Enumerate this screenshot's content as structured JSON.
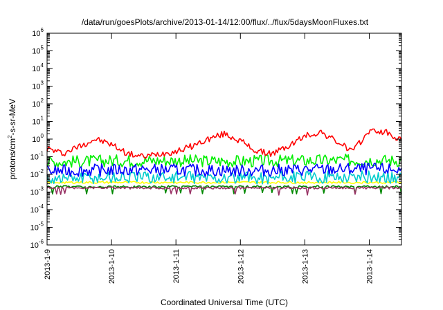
{
  "chart_data": {
    "type": "line",
    "title": "/data/run/goesPlots/archive/2013-01-14/12:00/flux/../flux/5daysMoonFluxes.txt",
    "xlabel": "Coordinated Universal Time (UTC)",
    "ylabel": "protons/cm²-s-sr-MeV",
    "ylabel_parts": {
      "pre": "protons/cm",
      "sup": "2",
      "post": "-s-sr-MeV"
    },
    "y_scale": "log",
    "ylim": [
      1e-06,
      1000000.0
    ],
    "y_ticks": [
      {
        "exp": -6,
        "base": "10",
        "sup": "-6"
      },
      {
        "exp": -5,
        "base": "10",
        "sup": "-5"
      },
      {
        "exp": -4,
        "base": "10",
        "sup": "-4"
      },
      {
        "exp": -3,
        "base": "10",
        "sup": "-3"
      },
      {
        "exp": -2,
        "base": "10",
        "sup": "-2"
      },
      {
        "exp": -1,
        "base": "10",
        "sup": "-1"
      },
      {
        "exp": 0,
        "base": "10",
        "sup": "0"
      },
      {
        "exp": 1,
        "base": "10",
        "sup": "1"
      },
      {
        "exp": 2,
        "base": "10",
        "sup": "2"
      },
      {
        "exp": 3,
        "base": "10",
        "sup": "3"
      },
      {
        "exp": 4,
        "base": "10",
        "sup": "4"
      },
      {
        "exp": 5,
        "base": "10",
        "sup": "5"
      },
      {
        "exp": 6,
        "base": "10",
        "sup": "6"
      }
    ],
    "xlim": [
      "2013-01-09T00:00",
      "2013-01-14T12:00"
    ],
    "x_ticks": [
      "2013-1-9",
      "2013-1-10",
      "2013-1-11",
      "2013-1-12",
      "2013-1-13",
      "2013-1-14"
    ],
    "grid": false,
    "series": [
      {
        "color": "#ff0000",
        "x": [
          "2013-01-09T00:00",
          "2013-01-09T06:00",
          "2013-01-09T12:00",
          "2013-01-09T18:00",
          "2013-01-10T00:00",
          "2013-01-10T06:00",
          "2013-01-10T12:00",
          "2013-01-10T18:00",
          "2013-01-11T00:00",
          "2013-01-11T06:00",
          "2013-01-11T12:00",
          "2013-01-11T18:00",
          "2013-01-12T00:00",
          "2013-01-12T06:00",
          "2013-01-12T12:00",
          "2013-01-12T18:00",
          "2013-01-13T00:00",
          "2013-01-13T06:00",
          "2013-01-13T12:00",
          "2013-01-13T18:00",
          "2013-01-14T00:00",
          "2013-01-14T06:00",
          "2013-01-14T12:00"
        ],
        "values": [
          0.3,
          0.15,
          0.4,
          1.0,
          0.5,
          0.15,
          0.1,
          0.15,
          0.2,
          0.4,
          1.0,
          2.0,
          0.8,
          0.2,
          0.15,
          0.4,
          1.5,
          2.5,
          0.7,
          0.2,
          3.0,
          2.5,
          0.8
        ]
      },
      {
        "color": "#00ee00",
        "x": [
          "2013-01-09T00:00",
          "2013-01-10T00:00",
          "2013-01-11T00:00",
          "2013-01-12T00:00",
          "2013-01-13T00:00",
          "2013-01-14T00:00",
          "2013-01-14T12:00"
        ],
        "values": [
          0.05,
          0.06,
          0.06,
          0.055,
          0.06,
          0.065,
          0.06
        ]
      },
      {
        "color": "#ffff00",
        "x": [
          "2013-01-09T00:00",
          "2013-01-10T00:00",
          "2013-01-11T00:00",
          "2013-01-12T00:00",
          "2013-01-13T00:00",
          "2013-01-14T00:00",
          "2013-01-14T12:00"
        ],
        "values": [
          0.0035,
          0.0035,
          0.0035,
          0.0035,
          0.0035,
          0.0035,
          0.0035
        ]
      },
      {
        "color": "#00cccc",
        "x": [
          "2013-01-09T00:00",
          "2013-01-10T00:00",
          "2013-01-11T00:00",
          "2013-01-12T00:00",
          "2013-01-13T00:00",
          "2013-01-14T00:00",
          "2013-01-14T12:00"
        ],
        "values": [
          0.006,
          0.007,
          0.007,
          0.006,
          0.007,
          0.007,
          0.007
        ]
      },
      {
        "color": "#0000ff",
        "x": [
          "2013-01-09T00:00",
          "2013-01-10T00:00",
          "2013-01-11T00:00",
          "2013-01-12T00:00",
          "2013-01-13T00:00",
          "2013-01-14T00:00",
          "2013-01-14T12:00"
        ],
        "values": [
          0.015,
          0.018,
          0.018,
          0.016,
          0.018,
          0.02,
          0.018
        ]
      },
      {
        "color": "#008800",
        "x": [
          "2013-01-09T00:00",
          "2013-01-10T00:00",
          "2013-01-11T00:00",
          "2013-01-12T00:00",
          "2013-01-13T00:00",
          "2013-01-14T00:00",
          "2013-01-14T12:00"
        ],
        "values": [
          0.002,
          0.002,
          0.002,
          0.002,
          0.002,
          0.002,
          0.002
        ]
      },
      {
        "color": "#993366",
        "x": [
          "2013-01-09T00:00",
          "2013-01-10T00:00",
          "2013-01-11T00:00",
          "2013-01-12T00:00",
          "2013-01-13T00:00",
          "2013-01-14T00:00",
          "2013-01-14T12:00"
        ],
        "values": [
          0.0017,
          0.0017,
          0.0017,
          0.0017,
          0.0017,
          0.0017,
          0.0017
        ]
      }
    ]
  }
}
